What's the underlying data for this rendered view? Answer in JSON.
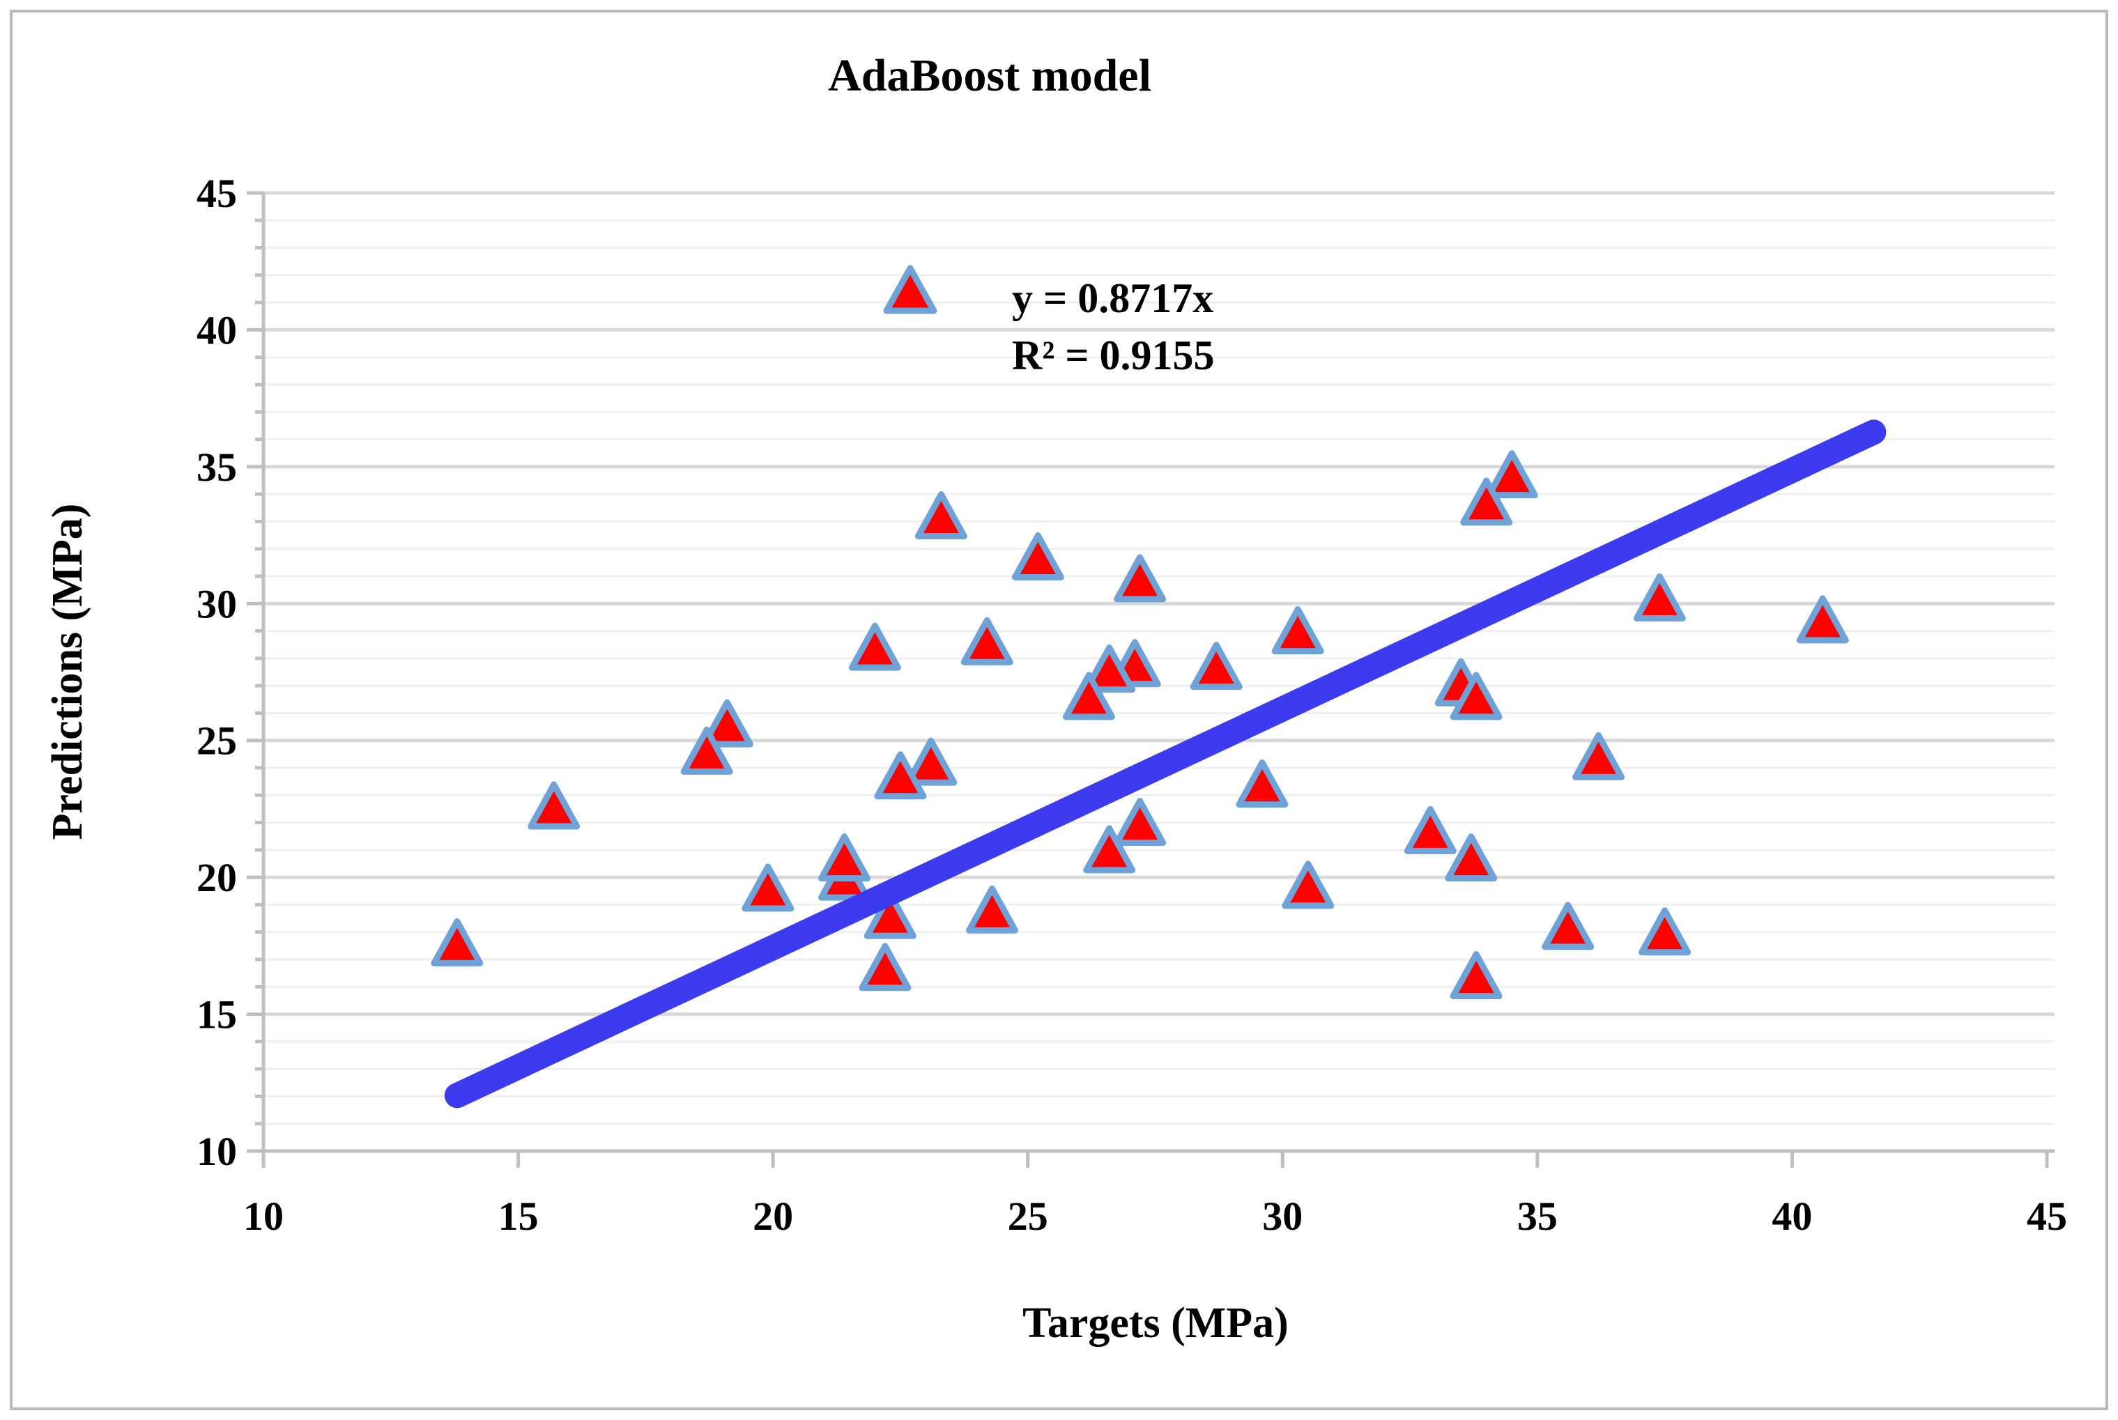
{
  "title": "AdaBoost model",
  "legend": {
    "marker_icon": "red-triangle-icon",
    "equation": "y = 0.8717x",
    "r2": "R² = 0.9155"
  },
  "axes": {
    "x": {
      "title": "Targets (MPa)",
      "tick_labels": [
        "10",
        "15",
        "20",
        "25",
        "30",
        "35",
        "40",
        "45"
      ],
      "min": 10,
      "max": 45,
      "major_step": 5
    },
    "y": {
      "title": "Predictions (MPa)",
      "tick_labels": [
        "10",
        "15",
        "20",
        "25",
        "30",
        "35",
        "40",
        "45"
      ],
      "min": 10,
      "max": 45,
      "major_step": 5,
      "minor_step": 1
    }
  },
  "chart_data": {
    "type": "scatter",
    "title": "AdaBoost model",
    "xlabel": "Targets (MPa)",
    "ylabel": "Predictions (MPa)",
    "xlim": [
      10,
      45
    ],
    "ylim": [
      10,
      45
    ],
    "grid": {
      "horizontal_minor": true,
      "horizontal_major": true,
      "vertical": false
    },
    "legend_position": "inside-top",
    "series": [
      {
        "name": "AdaBoost predictions vs targets",
        "marker": "triangle",
        "points": [
          [
            15.7,
            22.6
          ],
          [
            13.8,
            17.6
          ],
          [
            19.1,
            25.6
          ],
          [
            18.7,
            24.6
          ],
          [
            19.9,
            19.6
          ],
          [
            21.4,
            20.0
          ],
          [
            21.4,
            20.7
          ],
          [
            22.3,
            18.6
          ],
          [
            22.2,
            16.7
          ],
          [
            23.1,
            24.2
          ],
          [
            22.5,
            23.7
          ],
          [
            22.0,
            28.4
          ],
          [
            23.3,
            33.2
          ],
          [
            24.2,
            28.6
          ],
          [
            24.3,
            18.8
          ],
          [
            25.2,
            31.7
          ],
          [
            27.2,
            30.9
          ],
          [
            27.1,
            27.8
          ],
          [
            26.6,
            27.6
          ],
          [
            26.2,
            26.6
          ],
          [
            27.2,
            22.0
          ],
          [
            26.6,
            21.0
          ],
          [
            28.7,
            27.7
          ],
          [
            29.6,
            23.4
          ],
          [
            30.3,
            29.0
          ],
          [
            30.5,
            19.7
          ],
          [
            32.9,
            21.7
          ],
          [
            33.7,
            20.7
          ],
          [
            33.5,
            27.1
          ],
          [
            33.8,
            26.6
          ],
          [
            33.8,
            16.4
          ],
          [
            34.5,
            34.7
          ],
          [
            34.0,
            33.7
          ],
          [
            35.6,
            18.2
          ],
          [
            36.2,
            24.4
          ],
          [
            37.4,
            30.2
          ],
          [
            37.5,
            18.0
          ],
          [
            40.6,
            29.4
          ]
        ]
      }
    ],
    "trendline": {
      "label": "y = 0.8717x",
      "slope": 0.8717,
      "intercept": 0,
      "r_squared": 0.9155,
      "x_start": 13.8,
      "x_end": 41.6
    }
  },
  "colors": {
    "marker_fill": "#ff0000",
    "marker_stroke": "#6fa3d8",
    "trendline": "#3c3bef",
    "grid_minor": "#efefef",
    "grid_major": "#d9d9d9",
    "axis": "#bfbfbf",
    "text": "#000000",
    "frame": "#b9b9b9",
    "background": "#ffffff"
  }
}
